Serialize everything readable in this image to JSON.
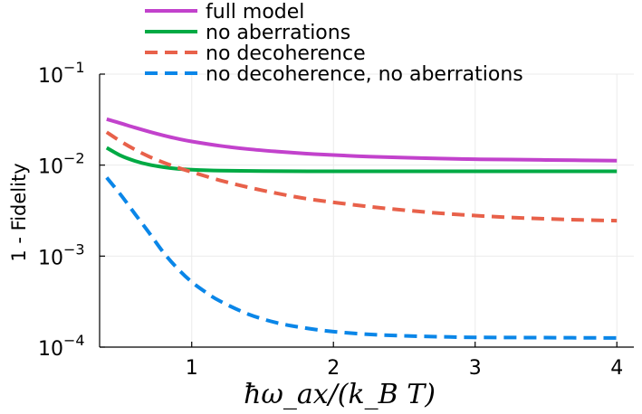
{
  "chart_data": {
    "type": "line",
    "title": "",
    "xlabel": "ħω_ax/(k_B T)",
    "ylabel": "1 - Fidelity",
    "xlim": [
      0.35,
      4.12
    ],
    "ylim": [
      0.0001,
      0.1
    ],
    "yscale": "log",
    "grid": true,
    "legend_position": "top-left",
    "x_ticks": [
      {
        "value": 1,
        "label": "1"
      },
      {
        "value": 2,
        "label": "2"
      },
      {
        "value": 3,
        "label": "3"
      },
      {
        "value": 4,
        "label": "4"
      }
    ],
    "y_ticks": [
      {
        "value": 0.1,
        "base": "10",
        "exp": "−1"
      },
      {
        "value": 0.01,
        "base": "10",
        "exp": "−2"
      },
      {
        "value": 0.001,
        "base": "10",
        "exp": "−3"
      },
      {
        "value": 0.0001,
        "base": "10",
        "exp": "−4"
      }
    ],
    "series": [
      {
        "name": "full model",
        "color": "#c242cc",
        "dash": "solid",
        "x": [
          0.4,
          0.5,
          0.6,
          0.7,
          0.8,
          0.9,
          1.0,
          1.2,
          1.4,
          1.6,
          1.8,
          2.0,
          2.25,
          2.5,
          2.75,
          3.0,
          3.25,
          3.5,
          3.75,
          4.0
        ],
        "y": [
          0.032,
          0.0288,
          0.0258,
          0.0233,
          0.0212,
          0.0195,
          0.0182,
          0.0163,
          0.015,
          0.0141,
          0.0134,
          0.0129,
          0.0124,
          0.0121,
          0.0118,
          0.0116,
          0.0115,
          0.0114,
          0.0113,
          0.0112
        ]
      },
      {
        "name": "no aberrations",
        "color": "#00aa44",
        "dash": "solid",
        "x": [
          0.4,
          0.5,
          0.6,
          0.7,
          0.8,
          0.9,
          1.0,
          1.2,
          1.5,
          2.0,
          2.5,
          3.0,
          3.5,
          4.0
        ],
        "y": [
          0.0155,
          0.0127,
          0.0111,
          0.0101,
          0.0095,
          0.0091,
          0.0089,
          0.0087,
          0.0086,
          0.00855,
          0.00855,
          0.00855,
          0.00855,
          0.00855
        ]
      },
      {
        "name": "no decoherence",
        "color": "#e8614a",
        "dash": "dashed",
        "x": [
          0.4,
          0.5,
          0.6,
          0.7,
          0.8,
          0.9,
          1.0,
          1.2,
          1.4,
          1.6,
          1.8,
          2.0,
          2.25,
          2.5,
          2.75,
          3.0,
          3.25,
          3.5,
          3.75,
          4.0
        ],
        "y": [
          0.023,
          0.0182,
          0.0148,
          0.0124,
          0.0107,
          0.0094,
          0.0084,
          0.0068,
          0.0057,
          0.0049,
          0.0043,
          0.0039,
          0.0035,
          0.0032,
          0.00296,
          0.00279,
          0.00266,
          0.00257,
          0.0025,
          0.00245
        ]
      },
      {
        "name": "no decoherence, no aberrations",
        "color": "#0a86e8",
        "dash": "dashed",
        "x": [
          0.4,
          0.5,
          0.6,
          0.7,
          0.8,
          0.9,
          1.0,
          1.1,
          1.2,
          1.4,
          1.6,
          1.8,
          2.0,
          2.25,
          2.5,
          2.75,
          3.0,
          3.5,
          4.0
        ],
        "y": [
          0.0073,
          0.0047,
          0.0029,
          0.0018,
          0.0011,
          0.00073,
          0.00052,
          0.0004,
          0.00032,
          0.00023,
          0.000185,
          0.000162,
          0.000148,
          0.000138,
          0.000133,
          0.00013,
          0.000128,
          0.000127,
          0.000126
        ]
      }
    ]
  }
}
